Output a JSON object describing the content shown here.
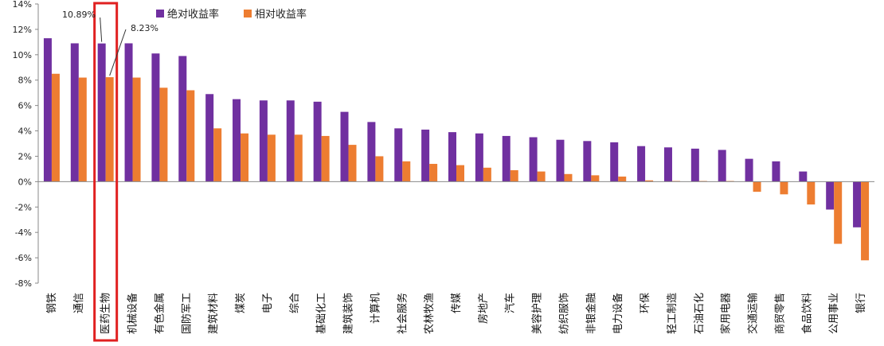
{
  "chart_data": {
    "type": "bar",
    "categories": [
      "钢铁",
      "通信",
      "医药生物",
      "机械设备",
      "有色金属",
      "国防军工",
      "建筑材料",
      "煤炭",
      "电子",
      "综合",
      "基础化工",
      "建筑装饰",
      "计算机",
      "社会服务",
      "农林牧渔",
      "传媒",
      "房地产",
      "汽车",
      "美容护理",
      "纺织服饰",
      "非银金融",
      "电力设备",
      "环保",
      "轻工制造",
      "石油石化",
      "家用电器",
      "交通运输",
      "商贸零售",
      "食品饮料",
      "公用事业",
      "银行"
    ],
    "series": [
      {
        "name": "绝对收益率",
        "color": "#7030a0",
        "values": [
          11.3,
          10.9,
          10.89,
          10.9,
          10.1,
          9.9,
          6.9,
          6.5,
          6.4,
          6.4,
          6.3,
          5.5,
          4.7,
          4.2,
          4.1,
          3.9,
          3.8,
          3.6,
          3.5,
          3.3,
          3.2,
          3.1,
          2.8,
          2.7,
          2.6,
          2.5,
          1.8,
          1.6,
          0.8,
          -2.2,
          -3.6
        ]
      },
      {
        "name": "相对收益率",
        "color": "#ed7d31",
        "values": [
          8.5,
          8.2,
          8.23,
          8.2,
          7.4,
          7.2,
          4.2,
          3.8,
          3.7,
          3.7,
          3.6,
          2.9,
          2.0,
          1.6,
          1.4,
          1.3,
          1.1,
          0.9,
          0.8,
          0.6,
          0.5,
          0.4,
          0.1,
          0.05,
          0.05,
          0.05,
          -0.8,
          -1.0,
          -1.8,
          -4.9,
          -6.2
        ]
      }
    ],
    "yaxis": {
      "min": -8,
      "max": 14,
      "step": 2,
      "tick_labels": [
        "-8%",
        "-6%",
        "-4%",
        "-2%",
        "0%",
        "2%",
        "4%",
        "6%",
        "8%",
        "10%",
        "12%",
        "14%"
      ]
    },
    "legend": {
      "placement": "top-center"
    },
    "annotations": [
      {
        "text": "10.89%",
        "series": 0,
        "category_index": 2
      },
      {
        "text": "8.23%",
        "series": 1,
        "category_index": 2
      }
    ],
    "highlight": {
      "category_index": 2,
      "color": "#e02020"
    },
    "grid": false
  }
}
